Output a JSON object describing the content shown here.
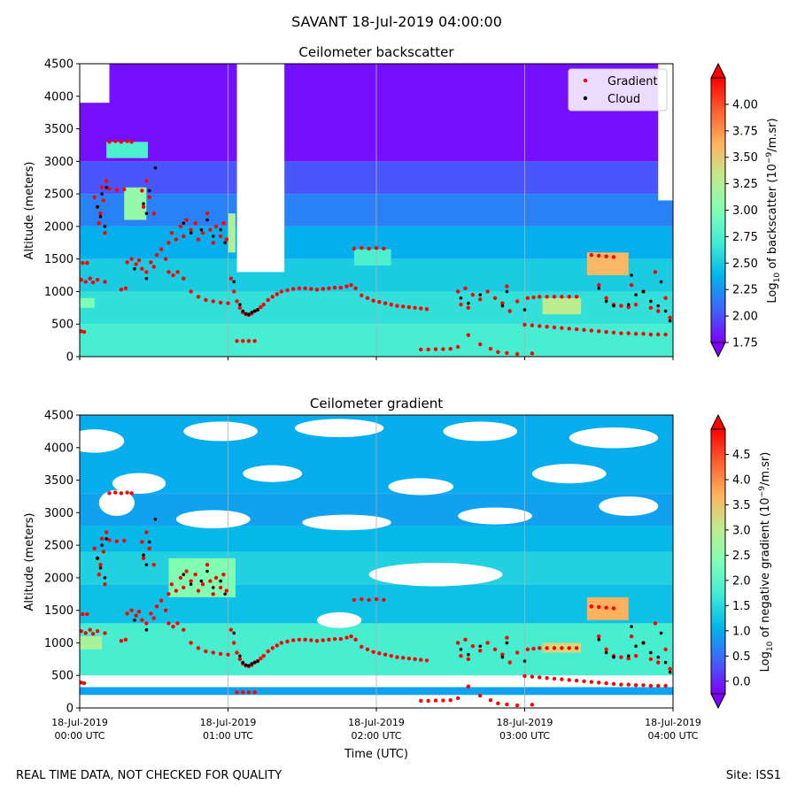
{
  "figure_title": "SAVANT 18-Jul-2019 04:00:00",
  "footer": {
    "left": "REAL TIME DATA, NOT CHECKED FOR QUALITY",
    "right": "Site: ISS1"
  },
  "colors": {
    "cmap": [
      "#7f00ff",
      "#4063fb",
      "#00b5eb",
      "#40ecd4",
      "#80ffb4",
      "#c0eb8d",
      "#ffb360",
      "#ff6030",
      "#ff0000"
    ],
    "gradient_marker": "#ff0000",
    "cloud_marker": "#000000",
    "grid": "#b0b0b0"
  },
  "chart_data": [
    {
      "type": "heatmap",
      "id": "backscatter",
      "title": "Ceilometer backscatter",
      "ylabel": "Altitude (meters)",
      "xlim": [
        0,
        4
      ],
      "ylim": [
        0,
        4500
      ],
      "yticks": [
        "0",
        "500",
        "1000",
        "1500",
        "2000",
        "2500",
        "3000",
        "3500",
        "4000",
        "4500"
      ],
      "ytick_values": [
        0,
        500,
        1000,
        1500,
        2000,
        2500,
        3000,
        3500,
        4000,
        4500
      ],
      "colorbar": {
        "label_pre": "Log",
        "label_sub": "10",
        "label_mid": " of backscatter (10",
        "label_sup": "−9",
        "label_post": "/m.sr)",
        "range": [
          1.75,
          4.25
        ],
        "ticks": [
          "1.75",
          "2.00",
          "2.25",
          "2.50",
          "2.75",
          "3.00",
          "3.25",
          "3.50",
          "3.75",
          "4.00"
        ],
        "tick_values": [
          1.75,
          2.0,
          2.25,
          2.5,
          2.75,
          3.0,
          3.25,
          3.5,
          3.75,
          4.0
        ]
      },
      "legend": {
        "location": "top-right",
        "entries": [
          "Gradient",
          "Cloud"
        ]
      },
      "background_layers": [
        {
          "y0": 0,
          "y1": 500,
          "value": 2.72
        },
        {
          "y0": 500,
          "y1": 1000,
          "value": 2.62
        },
        {
          "y0": 1000,
          "y1": 1500,
          "value": 2.5
        },
        {
          "y0": 1500,
          "y1": 2000,
          "value": 2.35
        },
        {
          "y0": 2000,
          "y1": 2500,
          "value": 2.18
        },
        {
          "y0": 2500,
          "y1": 3000,
          "value": 2.02
        },
        {
          "y0": 3000,
          "y1": 4500,
          "value": 1.8
        }
      ],
      "blanks": [
        {
          "t0": 1.06,
          "t1": 1.38,
          "y0": 1300,
          "y1": 4500
        },
        {
          "t0": 0.0,
          "t1": 0.2,
          "y0": 3900,
          "y1": 4500
        },
        {
          "t0": 3.9,
          "t1": 4.0,
          "y0": 2400,
          "y1": 4500
        }
      ],
      "patches": [
        {
          "t0": 0.18,
          "t1": 0.46,
          "y0": 3050,
          "y1": 3300,
          "value": 2.75
        },
        {
          "t0": 1.85,
          "t1": 2.1,
          "y0": 1400,
          "y1": 1650,
          "value": 2.75
        },
        {
          "t0": 3.42,
          "t1": 3.7,
          "y0": 1250,
          "y1": 1600,
          "value": 3.6
        },
        {
          "t0": 3.12,
          "t1": 3.38,
          "y0": 650,
          "y1": 900,
          "value": 3.3
        },
        {
          "t0": 0.0,
          "t1": 0.1,
          "y0": 750,
          "y1": 900,
          "value": 3.0
        },
        {
          "t0": 0.3,
          "t1": 0.45,
          "y0": 2100,
          "y1": 2600,
          "value": 3.1
        },
        {
          "t0": 1.0,
          "t1": 1.05,
          "y0": 1600,
          "y1": 2200,
          "value": 3.2
        }
      ]
    },
    {
      "type": "heatmap",
      "id": "gradient",
      "title": "Ceilometer gradient",
      "ylabel": "Altitude (meters)",
      "xlabel": "Time (UTC)",
      "xlim": [
        0,
        4
      ],
      "ylim": [
        0,
        4500
      ],
      "xticks": [
        {
          "value": 0,
          "line1": "18-Jul-2019",
          "line2": "00:00 UTC"
        },
        {
          "value": 1,
          "line1": "18-Jul-2019",
          "line2": "01:00 UTC"
        },
        {
          "value": 2,
          "line1": "18-Jul-2019",
          "line2": "02:00 UTC"
        },
        {
          "value": 3,
          "line1": "18-Jul-2019",
          "line2": "03:00 UTC"
        },
        {
          "value": 4,
          "line1": "18-Jul-2019",
          "line2": "04:00 UTC"
        }
      ],
      "yticks": [
        "0",
        "500",
        "1000",
        "1500",
        "2000",
        "2500",
        "3000",
        "3500",
        "4000",
        "4500"
      ],
      "ytick_values": [
        0,
        500,
        1000,
        1500,
        2000,
        2500,
        3000,
        3500,
        4000,
        4500
      ],
      "colorbar": {
        "label_pre": "Log",
        "label_sub": "10",
        "label_mid": " of negative gradient (10",
        "label_sup": "−9",
        "label_post": "/m.sr)",
        "range": [
          -0.25,
          5.0
        ],
        "ticks": [
          "0.0",
          "0.5",
          "1.0",
          "1.5",
          "2.0",
          "2.5",
          "3.0",
          "3.5",
          "4.0",
          "4.5"
        ],
        "tick_values": [
          0.0,
          0.5,
          1.0,
          1.5,
          2.0,
          2.5,
          3.0,
          3.5,
          4.0,
          4.5
        ]
      },
      "bands": [
        {
          "y0": 200,
          "y1": 320,
          "value": 0.9
        },
        {
          "y0": 500,
          "y1": 1300,
          "value": 1.8
        },
        {
          "y0": 1300,
          "y1": 1900,
          "value": 1.2
        },
        {
          "y0": 1900,
          "y1": 2400,
          "value": 1.4
        },
        {
          "y0": 2400,
          "y1": 2800,
          "value": 1.1
        },
        {
          "y0": 2800,
          "y1": 3300,
          "value": 0.9
        },
        {
          "y0": 3300,
          "y1": 3800,
          "value": 1.0
        },
        {
          "y0": 3800,
          "y1": 4500,
          "value": 1.0
        }
      ],
      "holes": [
        {
          "t": 0.1,
          "y": 4100,
          "rt": 0.2,
          "ry": 180
        },
        {
          "t": 0.95,
          "y": 4250,
          "rt": 0.25,
          "ry": 150
        },
        {
          "t": 1.75,
          "y": 4300,
          "rt": 0.3,
          "ry": 140
        },
        {
          "t": 2.7,
          "y": 4250,
          "rt": 0.25,
          "ry": 150
        },
        {
          "t": 3.6,
          "y": 4150,
          "rt": 0.3,
          "ry": 160
        },
        {
          "t": 0.4,
          "y": 3450,
          "rt": 0.18,
          "ry": 160
        },
        {
          "t": 1.3,
          "y": 3600,
          "rt": 0.2,
          "ry": 130
        },
        {
          "t": 2.3,
          "y": 3400,
          "rt": 0.22,
          "ry": 130
        },
        {
          "t": 3.3,
          "y": 3600,
          "rt": 0.25,
          "ry": 150
        },
        {
          "t": 0.9,
          "y": 2900,
          "rt": 0.25,
          "ry": 140
        },
        {
          "t": 1.8,
          "y": 2850,
          "rt": 0.3,
          "ry": 120
        },
        {
          "t": 2.8,
          "y": 2950,
          "rt": 0.25,
          "ry": 130
        },
        {
          "t": 3.7,
          "y": 3100,
          "rt": 0.2,
          "ry": 150
        },
        {
          "t": 2.4,
          "y": 2050,
          "rt": 0.45,
          "ry": 180
        },
        {
          "t": 1.75,
          "y": 1350,
          "rt": 0.15,
          "ry": 120
        },
        {
          "t": 0.25,
          "y": 3150,
          "rt": 0.12,
          "ry": 200
        }
      ],
      "patches": [
        {
          "t0": 0.0,
          "t1": 0.15,
          "y0": 900,
          "y1": 1100,
          "value": 2.8
        },
        {
          "t0": 3.42,
          "t1": 3.7,
          "y0": 1350,
          "y1": 1700,
          "value": 3.7
        },
        {
          "t0": 3.12,
          "t1": 3.38,
          "y0": 850,
          "y1": 1000,
          "value": 3.3
        },
        {
          "t0": 0.6,
          "t1": 1.05,
          "y0": 1700,
          "y1": 2300,
          "value": 2.4
        }
      ]
    }
  ],
  "gradient_points": [
    [
      0.02,
      1440
    ],
    [
      0.05,
      1440
    ],
    [
      0.01,
      1180
    ],
    [
      0.04,
      1150
    ],
    [
      0.07,
      1200
    ],
    [
      0.09,
      1140
    ],
    [
      0.12,
      1180
    ],
    [
      0.17,
      1150
    ],
    [
      0.01,
      390
    ],
    [
      0.03,
      380
    ],
    [
      0.1,
      2450
    ],
    [
      0.12,
      2300
    ],
    [
      0.14,
      2200
    ],
    [
      0.13,
      2050
    ],
    [
      0.15,
      2600
    ],
    [
      0.16,
      2400
    ],
    [
      0.18,
      2700
    ],
    [
      0.17,
      1900
    ],
    [
      0.2,
      2580
    ],
    [
      0.25,
      2560
    ],
    [
      0.3,
      2570
    ],
    [
      0.2,
      3300
    ],
    [
      0.24,
      3310
    ],
    [
      0.28,
      3300
    ],
    [
      0.32,
      3310
    ],
    [
      0.35,
      3300
    ],
    [
      0.42,
      2550
    ],
    [
      0.43,
      2300
    ],
    [
      0.45,
      2700
    ],
    [
      0.47,
      2450
    ],
    [
      0.5,
      2200
    ],
    [
      0.32,
      1450
    ],
    [
      0.35,
      1500
    ],
    [
      0.38,
      1420
    ],
    [
      0.4,
      1480
    ],
    [
      0.42,
      1350
    ],
    [
      0.45,
      1300
    ],
    [
      0.48,
      1450
    ],
    [
      0.5,
      1380
    ],
    [
      0.28,
      1030
    ],
    [
      0.31,
      1050
    ],
    [
      0.52,
      1560
    ],
    [
      0.55,
      1650
    ],
    [
      0.58,
      1500
    ],
    [
      0.6,
      1750
    ],
    [
      0.62,
      1900
    ],
    [
      0.65,
      1800
    ],
    [
      0.68,
      2000
    ],
    [
      0.7,
      1850
    ],
    [
      0.72,
      2100
    ],
    [
      0.75,
      1950
    ],
    [
      0.78,
      2050
    ],
    [
      0.8,
      1800
    ],
    [
      0.83,
      1900
    ],
    [
      0.86,
      2200
    ],
    [
      0.88,
      1950
    ],
    [
      0.9,
      1750
    ],
    [
      0.92,
      2000
    ],
    [
      0.95,
      1850
    ],
    [
      0.97,
      2050
    ],
    [
      0.99,
      1800
    ],
    [
      0.6,
      1300
    ],
    [
      0.63,
      1250
    ],
    [
      0.66,
      1300
    ],
    [
      0.7,
      1200
    ],
    [
      0.75,
      1000
    ],
    [
      0.8,
      920
    ],
    [
      0.85,
      870
    ],
    [
      0.9,
      850
    ],
    [
      0.95,
      830
    ],
    [
      1.0,
      820
    ],
    [
      1.02,
      1200
    ],
    [
      1.04,
      1000
    ],
    [
      1.06,
      850
    ],
    [
      1.08,
      750
    ],
    [
      1.1,
      680
    ],
    [
      1.12,
      650
    ],
    [
      1.14,
      640
    ],
    [
      1.16,
      660
    ],
    [
      1.18,
      700
    ],
    [
      1.2,
      720
    ],
    [
      1.22,
      760
    ],
    [
      1.24,
      800
    ],
    [
      1.06,
      240
    ],
    [
      1.1,
      240
    ],
    [
      1.14,
      240
    ],
    [
      1.18,
      240
    ],
    [
      1.27,
      870
    ],
    [
      1.3,
      920
    ],
    [
      1.33,
      960
    ],
    [
      1.36,
      1000
    ],
    [
      1.4,
      1020
    ],
    [
      1.44,
      1040
    ],
    [
      1.48,
      1050
    ],
    [
      1.52,
      1050
    ],
    [
      1.56,
      1040
    ],
    [
      1.6,
      1030
    ],
    [
      1.64,
      1040
    ],
    [
      1.68,
      1050
    ],
    [
      1.72,
      1060
    ],
    [
      1.76,
      1060
    ],
    [
      1.8,
      1080
    ],
    [
      1.83,
      1100
    ],
    [
      1.86,
      1050
    ],
    [
      1.9,
      940
    ],
    [
      1.94,
      900
    ],
    [
      1.98,
      860
    ],
    [
      2.02,
      840
    ],
    [
      2.06,
      820
    ],
    [
      2.1,
      800
    ],
    [
      2.14,
      780
    ],
    [
      2.18,
      770
    ],
    [
      2.22,
      760
    ],
    [
      2.26,
      750
    ],
    [
      2.3,
      740
    ],
    [
      2.34,
      730
    ],
    [
      1.85,
      1660
    ],
    [
      1.9,
      1670
    ],
    [
      1.95,
      1660
    ],
    [
      2.0,
      1670
    ],
    [
      2.05,
      1660
    ],
    [
      2.3,
      110
    ],
    [
      2.35,
      110
    ],
    [
      2.4,
      115
    ],
    [
      2.45,
      115
    ],
    [
      2.5,
      120
    ],
    [
      2.55,
      150
    ],
    [
      2.62,
      330
    ],
    [
      2.7,
      190
    ],
    [
      2.77,
      120
    ],
    [
      2.82,
      70
    ],
    [
      2.88,
      55
    ],
    [
      2.95,
      40
    ],
    [
      3.05,
      50
    ],
    [
      2.55,
      1000
    ],
    [
      2.57,
      800
    ],
    [
      2.6,
      1050
    ],
    [
      2.62,
      750
    ],
    [
      2.65,
      950
    ],
    [
      2.7,
      880
    ],
    [
      2.75,
      1000
    ],
    [
      2.8,
      900
    ],
    [
      2.85,
      820
    ],
    [
      2.88,
      1080
    ],
    [
      2.9,
      700
    ],
    [
      2.95,
      850
    ],
    [
      3.0,
      490
    ],
    [
      3.05,
      480
    ],
    [
      3.1,
      470
    ],
    [
      3.15,
      460
    ],
    [
      3.2,
      450
    ],
    [
      3.25,
      440
    ],
    [
      3.3,
      430
    ],
    [
      3.35,
      420
    ],
    [
      3.4,
      410
    ],
    [
      3.45,
      400
    ],
    [
      3.5,
      390
    ],
    [
      3.55,
      380
    ],
    [
      3.6,
      370
    ],
    [
      3.65,
      360
    ],
    [
      3.7,
      360
    ],
    [
      3.75,
      350
    ],
    [
      3.8,
      350
    ],
    [
      3.85,
      340
    ],
    [
      3.9,
      340
    ],
    [
      3.95,
      340
    ],
    [
      3.02,
      900
    ],
    [
      3.06,
      910
    ],
    [
      3.1,
      920
    ],
    [
      3.15,
      920
    ],
    [
      3.2,
      920
    ],
    [
      3.25,
      920
    ],
    [
      3.3,
      920
    ],
    [
      3.35,
      920
    ],
    [
      3.45,
      1560
    ],
    [
      3.5,
      1550
    ],
    [
      3.55,
      1540
    ],
    [
      3.6,
      1530
    ],
    [
      3.5,
      1100
    ],
    [
      3.55,
      900
    ],
    [
      3.6,
      800
    ],
    [
      3.65,
      780
    ],
    [
      3.7,
      760
    ],
    [
      3.75,
      800
    ],
    [
      3.8,
      1000
    ],
    [
      3.85,
      750
    ],
    [
      3.9,
      700
    ],
    [
      3.95,
      900
    ],
    [
      3.98,
      600
    ],
    [
      3.72,
      1100
    ],
    [
      3.88,
      1300
    ]
  ],
  "cloud_points": [
    [
      0.12,
      2300
    ],
    [
      0.14,
      2150
    ],
    [
      0.15,
      2500
    ],
    [
      0.17,
      2000
    ],
    [
      0.18,
      2600
    ],
    [
      0.43,
      2350
    ],
    [
      0.45,
      2200
    ],
    [
      0.47,
      2550
    ],
    [
      0.7,
      2050
    ],
    [
      0.75,
      1900
    ],
    [
      0.82,
      1950
    ],
    [
      0.86,
      2100
    ],
    [
      0.9,
      1850
    ],
    [
      0.95,
      1950
    ],
    [
      0.98,
      1750
    ],
    [
      0.51,
      2900
    ],
    [
      0.37,
      1350
    ],
    [
      0.45,
      1200
    ],
    [
      1.04,
      1150
    ],
    [
      1.08,
      800
    ],
    [
      1.1,
      700
    ],
    [
      1.12,
      660
    ],
    [
      1.14,
      650
    ],
    [
      1.16,
      680
    ],
    [
      1.18,
      700
    ],
    [
      1.2,
      720
    ],
    [
      2.57,
      900
    ],
    [
      2.62,
      820
    ],
    [
      2.7,
      950
    ],
    [
      2.85,
      780
    ],
    [
      2.88,
      1000
    ],
    [
      3.0,
      720
    ],
    [
      3.5,
      1050
    ],
    [
      3.55,
      850
    ],
    [
      3.6,
      780
    ],
    [
      3.7,
      800
    ],
    [
      3.75,
      950
    ],
    [
      3.8,
      1000
    ],
    [
      3.85,
      850
    ],
    [
      3.9,
      780
    ],
    [
      3.92,
      1150
    ],
    [
      3.95,
      700
    ],
    [
      3.98,
      550
    ],
    [
      3.72,
      1250
    ]
  ]
}
